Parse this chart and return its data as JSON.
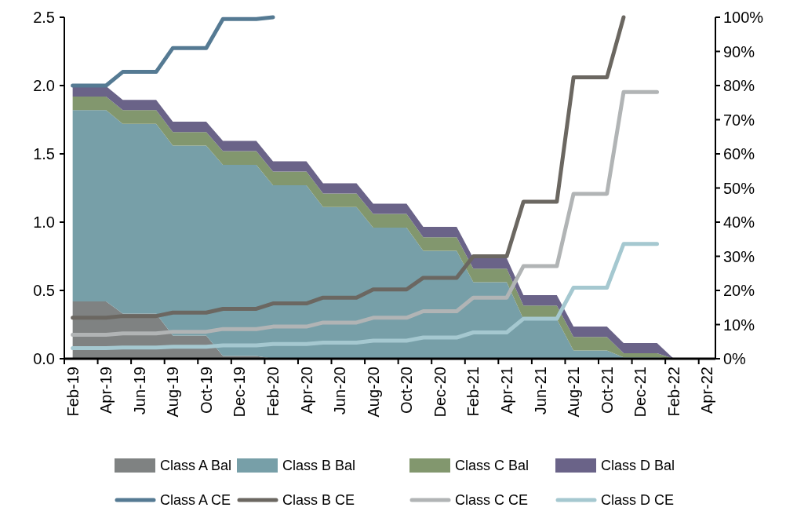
{
  "chart_data": {
    "type": "area",
    "stacked": true,
    "legend": "bottom",
    "grid": false,
    "categories": [
      "Feb-19",
      null,
      "Apr-19",
      null,
      "Jun-19",
      null,
      "Aug-19",
      null,
      "Oct-19",
      null,
      "Dec-19",
      null,
      "Feb-20",
      null,
      "Apr-20",
      null,
      "Jun-20",
      null,
      "Aug-20",
      null,
      "Oct-20",
      null,
      "Dec-20",
      null,
      "Feb-21",
      null,
      "Apr-21",
      null,
      "Jun-21",
      null,
      "Aug-21",
      null,
      "Oct-21",
      null,
      "Dec-21",
      null,
      "Feb-22",
      null,
      "Apr-22"
    ],
    "ylim": [
      0,
      2.5
    ],
    "yticks": [
      {
        "value": 0,
        "label": "0.0"
      },
      {
        "value": 0.5,
        "label": "0.5"
      },
      {
        "value": 1,
        "label": "1.0"
      },
      {
        "value": 1.5,
        "label": "1.5"
      },
      {
        "value": 2,
        "label": "2.0"
      },
      {
        "value": 2.5,
        "label": "2.5"
      }
    ],
    "y2lim": [
      0,
      100
    ],
    "y2ticks": [
      {
        "value": 0,
        "label": "0%"
      },
      {
        "value": 10,
        "label": "10%"
      },
      {
        "value": 20,
        "label": "20%"
      },
      {
        "value": 30,
        "label": "30%"
      },
      {
        "value": 40,
        "label": "40%"
      },
      {
        "value": 50,
        "label": "50%"
      },
      {
        "value": 60,
        "label": "60%"
      },
      {
        "value": 70,
        "label": "70%"
      },
      {
        "value": 80,
        "label": "80%"
      },
      {
        "value": 90,
        "label": "90%"
      },
      {
        "value": 100,
        "label": "100%"
      }
    ],
    "series": [
      {
        "name": "Class A Bal",
        "type": "area",
        "color": "#7f8282",
        "values": [
          0.42,
          0.42,
          0.42,
          0.33,
          0.33,
          0.33,
          0.17,
          0.17,
          0.17,
          0.02,
          0.02,
          0.02,
          0,
          0,
          0,
          0,
          0,
          0,
          0,
          0,
          0,
          0,
          0,
          0,
          0,
          0,
          0,
          0,
          0,
          0,
          0,
          0,
          0,
          0,
          0,
          0,
          0,
          null,
          null
        ]
      },
      {
        "name": "Class B Bal",
        "type": "area",
        "color": "#779fa8",
        "values": [
          1.4,
          1.4,
          1.4,
          1.39,
          1.39,
          1.39,
          1.39,
          1.39,
          1.39,
          1.4,
          1.4,
          1.4,
          1.27,
          1.27,
          1.27,
          1.11,
          1.11,
          1.11,
          0.96,
          0.96,
          0.96,
          0.79,
          0.79,
          0.79,
          0.56,
          0.56,
          0.56,
          0.29,
          0.29,
          0.29,
          0.06,
          0.06,
          0.06,
          0.01,
          0.01,
          0.01,
          0,
          null,
          null
        ]
      },
      {
        "name": "Class C Bal",
        "type": "area",
        "color": "#82976e",
        "values": [
          0.1,
          0.1,
          0.1,
          0.1,
          0.1,
          0.1,
          0.1,
          0.1,
          0.1,
          0.1,
          0.1,
          0.1,
          0.1,
          0.1,
          0.1,
          0.1,
          0.1,
          0.1,
          0.1,
          0.1,
          0.1,
          0.1,
          0.1,
          0.1,
          0.1,
          0.1,
          0.1,
          0.1,
          0.1,
          0.1,
          0.1,
          0.1,
          0.1,
          0.03,
          0.03,
          0.03,
          0,
          null,
          null
        ]
      },
      {
        "name": "Class D Bal",
        "type": "area",
        "color": "#6a6388",
        "values": [
          0.075,
          0.075,
          0.075,
          0.075,
          0.075,
          0.075,
          0.075,
          0.075,
          0.075,
          0.075,
          0.075,
          0.075,
          0.075,
          0.075,
          0.075,
          0.075,
          0.075,
          0.075,
          0.075,
          0.075,
          0.075,
          0.075,
          0.075,
          0.075,
          0.075,
          0.075,
          0.075,
          0.075,
          0.075,
          0.075,
          0.075,
          0.075,
          0.075,
          0.075,
          0.075,
          0.075,
          0,
          null,
          null
        ]
      },
      {
        "name": "Class A CE",
        "type": "line",
        "axis": "y2",
        "color": "#557a93",
        "values": [
          80,
          80,
          80,
          84,
          84,
          84,
          91,
          91,
          91,
          99.5,
          99.5,
          99.5,
          100,
          null,
          null,
          null,
          null,
          null,
          null,
          null,
          null,
          null,
          null,
          null,
          null,
          null,
          null,
          null,
          null,
          null,
          null,
          null,
          null,
          null,
          null,
          null,
          null,
          null,
          null
        ]
      },
      {
        "name": "Class B CE",
        "type": "line",
        "axis": "y2",
        "color": "#6b6761",
        "values": [
          12,
          12,
          12,
          12.5,
          12.5,
          12.5,
          13.5,
          13.5,
          13.5,
          14.6,
          14.6,
          14.6,
          16.2,
          16.2,
          16.2,
          17.9,
          17.9,
          17.9,
          20.3,
          20.3,
          20.3,
          23.7,
          23.7,
          23.7,
          30,
          30,
          30,
          46,
          46,
          46,
          82.4,
          82.4,
          82.4,
          100,
          null,
          null,
          null,
          null,
          null
        ]
      },
      {
        "name": "Class C CE",
        "type": "line",
        "axis": "y2",
        "color": "#b1b4b5",
        "values": [
          7,
          7,
          7,
          7.4,
          7.4,
          7.4,
          7.9,
          7.9,
          7.9,
          8.7,
          8.7,
          8.7,
          9.4,
          9.4,
          9.4,
          10.6,
          10.6,
          10.6,
          12,
          12,
          12,
          13.9,
          13.9,
          13.9,
          17.9,
          17.9,
          17.9,
          27.1,
          27.1,
          27.1,
          48.3,
          48.3,
          48.3,
          78.1,
          78.1,
          78.1,
          null,
          null,
          null
        ]
      },
      {
        "name": "Class D CE",
        "type": "line",
        "axis": "y2",
        "color": "#a5c8d0",
        "values": [
          3.1,
          3.1,
          3.1,
          3.3,
          3.3,
          3.3,
          3.5,
          3.5,
          3.5,
          3.9,
          3.9,
          3.9,
          4.3,
          4.3,
          4.3,
          4.7,
          4.7,
          4.7,
          5.3,
          5.3,
          5.3,
          6.2,
          6.2,
          6.2,
          7.7,
          7.7,
          7.7,
          11.7,
          11.7,
          11.7,
          20.8,
          20.8,
          20.8,
          33.6,
          33.6,
          33.6,
          null,
          null,
          null
        ]
      }
    ]
  }
}
